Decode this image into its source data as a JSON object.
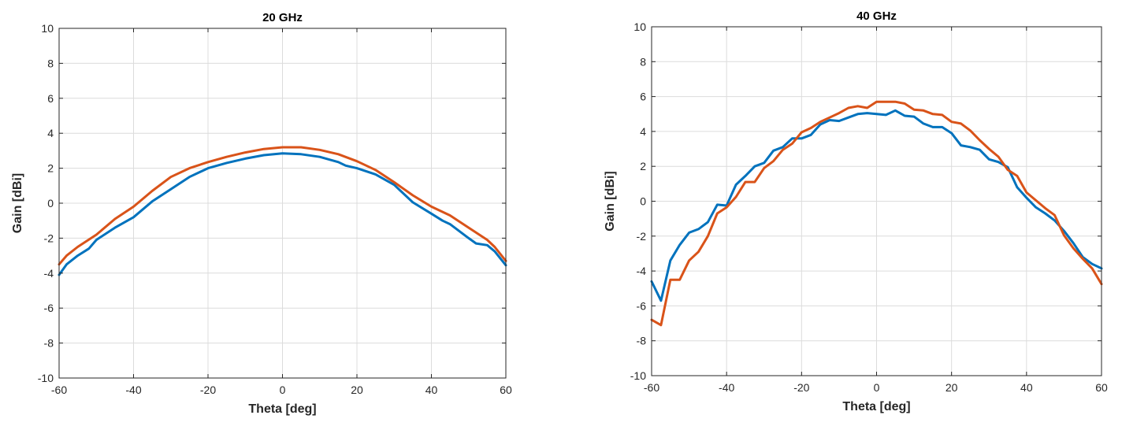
{
  "chart_data": [
    {
      "type": "line",
      "title": "20 GHz",
      "xlabel": "Theta [deg]",
      "ylabel": "Gain [dBi]",
      "xlim": [
        -60,
        60
      ],
      "ylim": [
        -10,
        10
      ],
      "xticks": [
        "-60",
        "-40",
        "-20",
        "0",
        "20",
        "40",
        "60"
      ],
      "yticks": [
        "-10",
        "-8",
        "-6",
        "-4",
        "-2",
        "0",
        "2",
        "4",
        "6",
        "8",
        "10"
      ],
      "grid": true,
      "series": [
        {
          "color": "#0072BD",
          "x": [
            -60,
            -58,
            -55,
            -52,
            -50,
            -45,
            -40,
            -35,
            -30,
            -25,
            -20,
            -15,
            -10,
            -5,
            0,
            5,
            10,
            15,
            17,
            20,
            25,
            30,
            35,
            40,
            43,
            45,
            50,
            52,
            55,
            57,
            60
          ],
          "y": [
            -4.1,
            -3.5,
            -3.0,
            -2.6,
            -2.1,
            -1.4,
            -0.8,
            0.1,
            0.8,
            1.5,
            2.0,
            2.3,
            2.55,
            2.75,
            2.85,
            2.8,
            2.65,
            2.35,
            2.15,
            2.0,
            1.65,
            1.05,
            0.05,
            -0.6,
            -1.0,
            -1.2,
            -2.0,
            -2.3,
            -2.4,
            -2.75,
            -3.55
          ]
        },
        {
          "color": "#D95319",
          "x": [
            -60,
            -58,
            -55,
            -50,
            -45,
            -40,
            -35,
            -30,
            -25,
            -20,
            -15,
            -10,
            -5,
            0,
            5,
            10,
            15,
            20,
            25,
            30,
            35,
            40,
            45,
            50,
            55,
            57,
            60
          ],
          "y": [
            -3.5,
            -3.0,
            -2.5,
            -1.8,
            -0.9,
            -0.2,
            0.7,
            1.5,
            2.0,
            2.35,
            2.65,
            2.9,
            3.1,
            3.2,
            3.2,
            3.05,
            2.8,
            2.4,
            1.9,
            1.2,
            0.45,
            -0.2,
            -0.7,
            -1.4,
            -2.1,
            -2.5,
            -3.3
          ]
        }
      ]
    },
    {
      "type": "line",
      "title": "40 GHz",
      "xlabel": "Theta [deg]",
      "ylabel": "Gain [dBi]",
      "xlim": [
        -60,
        60
      ],
      "ylim": [
        -10,
        10
      ],
      "xticks": [
        "-60",
        "-40",
        "-20",
        "0",
        "20",
        "40",
        "60"
      ],
      "yticks": [
        "-10",
        "-8",
        "-6",
        "-4",
        "-2",
        "0",
        "2",
        "4",
        "6",
        "8",
        "10"
      ],
      "grid": true,
      "series": [
        {
          "color": "#0072BD",
          "x": [
            -60,
            -57.5,
            -55,
            -52.5,
            -50,
            -47.5,
            -45,
            -42.5,
            -40,
            -37.5,
            -35,
            -32.5,
            -30,
            -27.5,
            -25,
            -22.5,
            -20,
            -17.5,
            -15,
            -12.5,
            -10,
            -7.5,
            -5,
            -2.5,
            0,
            2.5,
            5,
            7.5,
            10,
            12.5,
            15,
            17.5,
            20,
            22.5,
            25,
            27.5,
            30,
            32.5,
            35,
            37.5,
            40,
            42.5,
            45,
            47.5,
            50,
            52.5,
            55,
            57.5,
            60
          ],
          "y": [
            -4.6,
            -5.7,
            -3.4,
            -2.5,
            -1.8,
            -1.6,
            -1.2,
            -0.2,
            -0.25,
            0.95,
            1.45,
            2.0,
            2.2,
            2.9,
            3.1,
            3.6,
            3.6,
            3.8,
            4.4,
            4.65,
            4.6,
            4.8,
            5.0,
            5.05,
            5.0,
            4.95,
            5.2,
            4.9,
            4.85,
            4.45,
            4.25,
            4.25,
            3.9,
            3.2,
            3.1,
            2.95,
            2.4,
            2.25,
            1.95,
            0.8,
            0.2,
            -0.35,
            -0.7,
            -1.1,
            -1.7,
            -2.4,
            -3.2,
            -3.6,
            -3.85
          ]
        },
        {
          "color": "#D95319",
          "x": [
            -60,
            -57.5,
            -55,
            -52.5,
            -50,
            -47.5,
            -45,
            -42.5,
            -40,
            -37.5,
            -35,
            -32.5,
            -30,
            -27.5,
            -25,
            -22.5,
            -20,
            -17.5,
            -15,
            -12.5,
            -10,
            -7.5,
            -5,
            -2.5,
            0,
            2.5,
            5,
            7.5,
            10,
            12.5,
            15,
            17.5,
            20,
            22.5,
            25,
            27.5,
            30,
            32.5,
            35,
            37.5,
            40,
            42.5,
            45,
            47.5,
            50,
            52.5,
            55,
            57.5,
            60
          ],
          "y": [
            -6.8,
            -7.1,
            -4.5,
            -4.5,
            -3.4,
            -2.9,
            -2.0,
            -0.7,
            -0.35,
            0.25,
            1.1,
            1.1,
            1.9,
            2.3,
            2.95,
            3.3,
            3.95,
            4.2,
            4.55,
            4.8,
            5.05,
            5.35,
            5.45,
            5.35,
            5.7,
            5.7,
            5.7,
            5.6,
            5.25,
            5.2,
            5.0,
            4.95,
            4.55,
            4.45,
            4.05,
            3.5,
            3.0,
            2.55,
            1.8,
            1.45,
            0.5,
            0.05,
            -0.4,
            -0.8,
            -1.95,
            -2.7,
            -3.3,
            -3.85,
            -4.75
          ]
        }
      ]
    }
  ]
}
